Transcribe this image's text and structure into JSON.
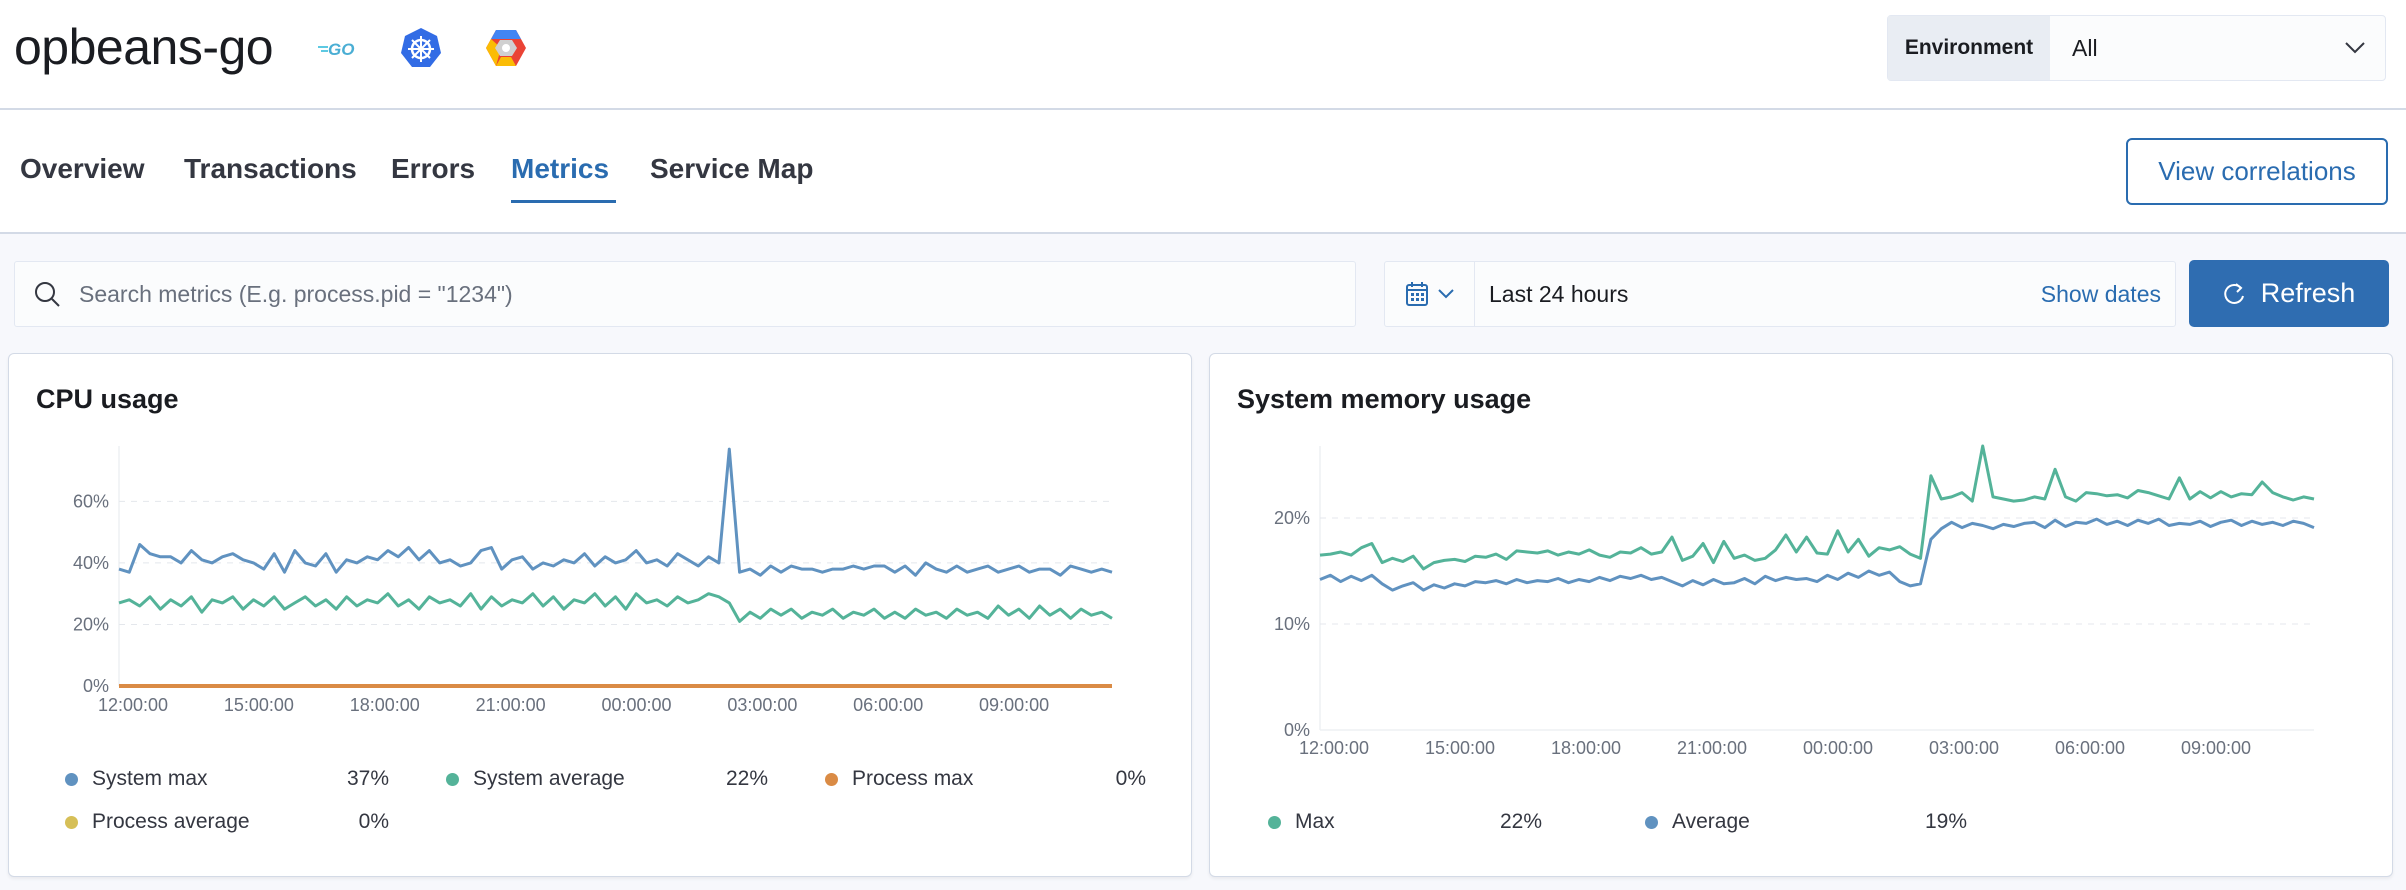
{
  "header": {
    "title": "opbeans-go",
    "logos": [
      "go-logo",
      "kubernetes-logo",
      "gcp-logo"
    ],
    "environment": {
      "label": "Environment",
      "value": "All"
    }
  },
  "tabs": [
    {
      "label": "Overview"
    },
    {
      "label": "Transactions"
    },
    {
      "label": "Errors"
    },
    {
      "label": "Metrics",
      "active": true
    },
    {
      "label": "Service Map"
    }
  ],
  "view_correlations": "View correlations",
  "search": {
    "placeholder": "Search metrics (E.g. process.pid = \"1234\")"
  },
  "date_picker": {
    "value": "Last 24 hours",
    "show_dates": "Show dates"
  },
  "refresh": "Refresh",
  "colors": {
    "accent": "#2a6cb0",
    "blue": "#6092c0",
    "green": "#54b399",
    "orange": "#da8b45",
    "yellow": "#d6bf57"
  },
  "chart_data": [
    {
      "type": "line",
      "title": "CPU usage",
      "ylim": [
        0,
        78
      ],
      "yticks": [
        "0%",
        "20%",
        "40%",
        "60%"
      ],
      "ytick_values": [
        0,
        20,
        40,
        60
      ],
      "x_range": [
        "11:40",
        "11:20"
      ],
      "xticks": [
        "12:00:00",
        "15:00:00",
        "18:00:00",
        "21:00:00",
        "00:00:00",
        "03:00:00",
        "06:00:00",
        "09:00:00"
      ],
      "grid": true,
      "legend_placement": "bottom",
      "series": [
        {
          "name": "System max",
          "color": "#6092c0",
          "legend_value": "37%",
          "values": [
            38,
            37,
            46,
            43,
            42,
            42,
            40,
            44,
            41,
            40,
            42,
            43,
            41,
            40,
            38,
            43,
            37,
            44,
            40,
            39,
            43,
            37,
            41,
            40,
            42,
            41,
            44,
            42,
            45,
            41,
            44,
            40,
            41,
            39,
            40,
            44,
            45,
            38,
            41,
            42,
            38,
            40,
            39,
            41,
            40,
            43,
            39,
            42,
            40,
            41,
            44,
            40,
            41,
            39,
            43,
            41,
            39,
            42,
            40,
            77,
            37,
            38,
            36,
            39,
            37,
            39,
            38,
            38,
            37,
            38,
            38,
            39,
            38,
            39,
            39,
            37,
            39,
            36,
            40,
            38,
            37,
            39,
            37,
            38,
            39,
            37,
            38,
            39,
            37,
            38,
            38,
            36,
            39,
            38,
            37,
            38,
            37
          ]
        },
        {
          "name": "System average",
          "color": "#54b399",
          "legend_value": "22%",
          "values": [
            27,
            28,
            26,
            29,
            25,
            28,
            26,
            29,
            24,
            28,
            27,
            29,
            25,
            28,
            26,
            29,
            25,
            27,
            29,
            26,
            28,
            25,
            29,
            26,
            28,
            27,
            30,
            26,
            28,
            25,
            29,
            27,
            28,
            26,
            30,
            25,
            29,
            26,
            28,
            27,
            30,
            26,
            29,
            25,
            28,
            27,
            30,
            26,
            29,
            25,
            30,
            27,
            28,
            26,
            29,
            27,
            28,
            30,
            29,
            27,
            21,
            24,
            22,
            25,
            23,
            25,
            22,
            24,
            23,
            25,
            22,
            24,
            23,
            25,
            22,
            24,
            22,
            25,
            23,
            24,
            22,
            25,
            23,
            24,
            22,
            26,
            23,
            25,
            22,
            26,
            23,
            25,
            22,
            25,
            23,
            24,
            22
          ]
        },
        {
          "name": "Process max",
          "color": "#da8b45",
          "legend_value": "0%",
          "values": [
            0,
            0,
            0,
            0,
            0,
            0,
            0,
            0,
            0,
            0,
            0,
            0,
            0,
            0,
            0,
            0,
            0,
            0,
            0,
            0,
            0,
            0,
            0,
            0,
            0,
            0,
            0,
            0,
            0,
            0,
            0,
            0,
            0,
            0,
            0,
            0,
            0,
            0,
            0,
            0,
            0,
            0,
            0,
            0,
            0,
            0,
            0,
            0,
            0,
            0,
            0,
            0,
            0,
            0,
            0,
            0,
            0,
            0,
            0,
            0,
            0,
            0,
            0,
            0,
            0,
            0,
            0,
            0,
            0,
            0,
            0,
            0,
            0,
            0,
            0,
            0,
            0,
            0,
            0,
            0,
            0,
            0,
            0,
            0,
            0,
            0,
            0,
            0,
            0,
            0,
            0,
            0,
            0,
            0,
            0,
            0,
            0
          ]
        },
        {
          "name": "Process average",
          "color": "#d6bf57",
          "legend_value": "0%",
          "values": [
            0,
            0,
            0,
            0,
            0,
            0,
            0,
            0,
            0,
            0,
            0,
            0,
            0,
            0,
            0,
            0,
            0,
            0,
            0,
            0,
            0,
            0,
            0,
            0,
            0,
            0,
            0,
            0,
            0,
            0,
            0,
            0,
            0,
            0,
            0,
            0,
            0,
            0,
            0,
            0,
            0,
            0,
            0,
            0,
            0,
            0,
            0,
            0,
            0,
            0,
            0,
            0,
            0,
            0,
            0,
            0,
            0,
            0,
            0,
            0,
            0,
            0,
            0,
            0,
            0,
            0,
            0,
            0,
            0,
            0,
            0,
            0,
            0,
            0,
            0,
            0,
            0,
            0,
            0,
            0,
            0,
            0,
            0,
            0,
            0,
            0,
            0,
            0,
            0,
            0,
            0,
            0,
            0,
            0,
            0,
            0,
            0
          ]
        }
      ]
    },
    {
      "type": "line",
      "title": "System memory usage",
      "ylim": [
        0,
        26.8
      ],
      "yticks": [
        "0%",
        "10%",
        "20%"
      ],
      "ytick_values": [
        0,
        10,
        20
      ],
      "x_range": [
        "11:40",
        "11:20"
      ],
      "xticks": [
        "12:00:00",
        "15:00:00",
        "18:00:00",
        "21:00:00",
        "00:00:00",
        "03:00:00",
        "06:00:00",
        "09:00:00"
      ],
      "grid": true,
      "legend_placement": "bottom",
      "series": [
        {
          "name": "Max",
          "color": "#54b399",
          "legend_value": "22%",
          "values": [
            16.5,
            16.6,
            16.8,
            16.5,
            17.2,
            17.6,
            15.8,
            16.2,
            15.9,
            16.4,
            15.2,
            15.8,
            16.0,
            16.1,
            15.9,
            16.4,
            16.3,
            16.6,
            16.1,
            16.9,
            16.8,
            16.7,
            16.9,
            16.5,
            16.8,
            16.6,
            17.0,
            16.5,
            16.3,
            16.8,
            16.7,
            17.2,
            16.6,
            16.8,
            18.2,
            16.0,
            16.4,
            17.6,
            15.8,
            17.8,
            16.2,
            16.5,
            16.0,
            16.2,
            17.0,
            18.4,
            16.8,
            18.2,
            16.7,
            16.6,
            18.8,
            16.8,
            18.0,
            16.4,
            17.2,
            17.0,
            17.3,
            16.6,
            16.2,
            24.0,
            21.8,
            22.0,
            22.4,
            21.6,
            26.8,
            22.0,
            21.8,
            21.6,
            21.7,
            22.0,
            21.8,
            24.6,
            22.0,
            21.6,
            22.4,
            22.3,
            22.1,
            22.2,
            21.9,
            22.6,
            22.4,
            22.1,
            21.8,
            23.8,
            21.8,
            22.5,
            21.9,
            22.5,
            22.0,
            22.3,
            22.2,
            23.4,
            22.4,
            22.0,
            21.7,
            22.0,
            21.8
          ]
        },
        {
          "name": "Average",
          "color": "#6092c0",
          "legend_value": "19%",
          "values": [
            14.2,
            14.6,
            14.0,
            14.5,
            14.1,
            14.6,
            13.8,
            13.2,
            13.6,
            13.9,
            13.2,
            13.7,
            13.4,
            13.8,
            13.6,
            14.0,
            13.9,
            14.1,
            13.8,
            14.2,
            13.9,
            14.1,
            14.0,
            14.3,
            13.9,
            14.2,
            14.0,
            14.4,
            14.1,
            14.5,
            14.3,
            14.6,
            14.2,
            14.4,
            14.0,
            13.6,
            14.1,
            13.7,
            14.2,
            13.8,
            13.9,
            14.3,
            13.8,
            14.5,
            14.1,
            14.4,
            14.2,
            14.3,
            14.0,
            14.6,
            14.2,
            14.8,
            14.4,
            15.0,
            14.6,
            14.9,
            14.0,
            13.6,
            13.8,
            18.0,
            19.0,
            19.6,
            19.1,
            19.5,
            19.3,
            19.0,
            19.4,
            19.2,
            19.5,
            19.6,
            19.1,
            19.8,
            19.2,
            19.6,
            19.5,
            19.9,
            19.4,
            19.7,
            19.3,
            19.8,
            19.5,
            19.9,
            19.3,
            19.5,
            19.4,
            19.7,
            19.2,
            19.6,
            19.8,
            19.3,
            19.7,
            19.4,
            19.6,
            19.3,
            19.7,
            19.5,
            19.1
          ]
        }
      ]
    }
  ]
}
